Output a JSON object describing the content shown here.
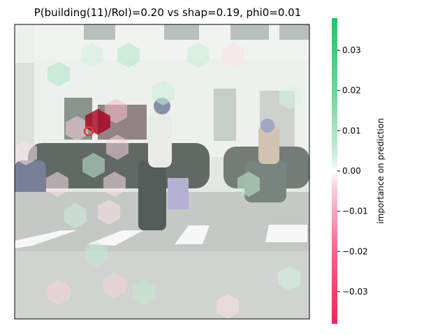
{
  "chart_data": {
    "type": "heatmap",
    "title": "P(building(11)/RoI)=0.20 vs shap=0.19, phi0=0.01",
    "colorbar": {
      "label": "importance on prediction",
      "ticks": [
        "−0.03",
        "−0.02",
        "−0.01",
        "0.00",
        "0.01",
        "0.02",
        "0.03"
      ],
      "tick_values": [
        -0.03,
        -0.02,
        -0.01,
        0.0,
        0.01,
        0.02,
        0.03
      ],
      "range": [
        -0.038,
        0.038
      ],
      "color_negative": "#f0245a",
      "color_positive": "#24c26a",
      "color_zero": "#ffffff"
    },
    "image_description_elements": {
      "roi_marker_color": "#e03c3c",
      "strong_negative_cell_color": "#a8001e"
    },
    "grid_on": false,
    "axes_ticks": false
  }
}
